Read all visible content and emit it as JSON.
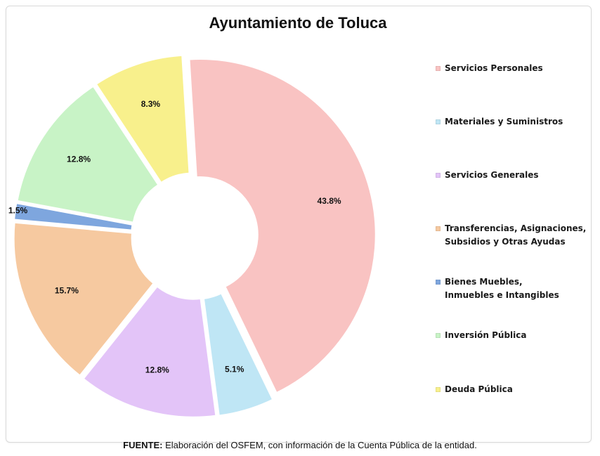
{
  "chart_data": {
    "type": "pie",
    "title": "Ayuntamiento de Toluca",
    "donut": true,
    "legend_position": "right",
    "slices": [
      {
        "label": "Servicios Personales",
        "value": 43.8,
        "value_label": "43.8%",
        "color": "#f9c3c2"
      },
      {
        "label": "Materiales y Suministros",
        "value": 5.1,
        "value_label": "5.1%",
        "color": "#bfe6f5"
      },
      {
        "label": "Servicios Generales",
        "value": 12.8,
        "value_label": "12.8%",
        "color": "#e3c4f8"
      },
      {
        "label": "Transferencias, Asignaciones, Subsidios y Otras Ayudas",
        "value": 15.7,
        "value_label": "15.7%",
        "color": "#f6c9a0"
      },
      {
        "label": "Bienes Muebles, Inmuebles e Intangibles",
        "value": 1.5,
        "value_label": "1.5%",
        "color": "#7ea6de"
      },
      {
        "label": "Inversión Pública",
        "value": 12.8,
        "value_label": "12.8%",
        "color": "#c8f3c6"
      },
      {
        "label": "Deuda Pública",
        "value": 8.3,
        "value_label": "8.3%",
        "color": "#f8f08c"
      }
    ],
    "legend_lines": [
      [
        "Servicios Personales"
      ],
      [
        "Materiales y Suministros"
      ],
      [
        "Servicios Generales"
      ],
      [
        "Transferencias, Asignaciones,",
        "Subsidios y Otras Ayudas"
      ],
      [
        "Bienes Muebles,",
        "Inmuebles e Intangibles"
      ],
      [
        "Inversión Pública"
      ],
      [
        "Deuda Pública"
      ]
    ]
  },
  "footer": {
    "label": "FUENTE:",
    "text": " Elaboración del OSFEM, con información de la Cuenta Pública de la entidad."
  }
}
